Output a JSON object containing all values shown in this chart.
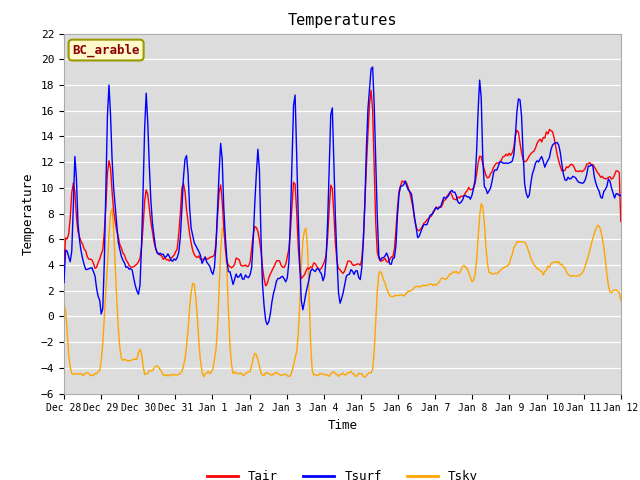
{
  "title": "Temperatures",
  "xlabel": "Time",
  "ylabel": "Temperature",
  "annotation_text": "BC_arable",
  "annotation_color": "#8B0000",
  "annotation_bg": "#FFFACD",
  "annotation_border": "#999900",
  "ylim": [
    -6,
    22
  ],
  "yticks": [
    -6,
    -4,
    -2,
    0,
    2,
    4,
    6,
    8,
    10,
    12,
    14,
    16,
    18,
    20,
    22
  ],
  "xtick_labels": [
    "Dec 28",
    "Dec 29",
    "Dec 30",
    "Dec 31",
    "Jan 1",
    "Jan 2",
    "Jan 3",
    "Jan 4",
    "Jan 5",
    "Jan 6",
    "Jan 7",
    "Jan 8",
    "Jan 9",
    "Jan 10",
    "Jan 11",
    "Jan 12"
  ],
  "line_colors": {
    "Tair": "#FF0000",
    "Tsurf": "#0000FF",
    "Tsky": "#FFA500"
  },
  "line_width": 1.0,
  "bg_color": "#DCDCDC",
  "fig_bg": "#FFFFFF",
  "grid_color": "#FFFFFF"
}
